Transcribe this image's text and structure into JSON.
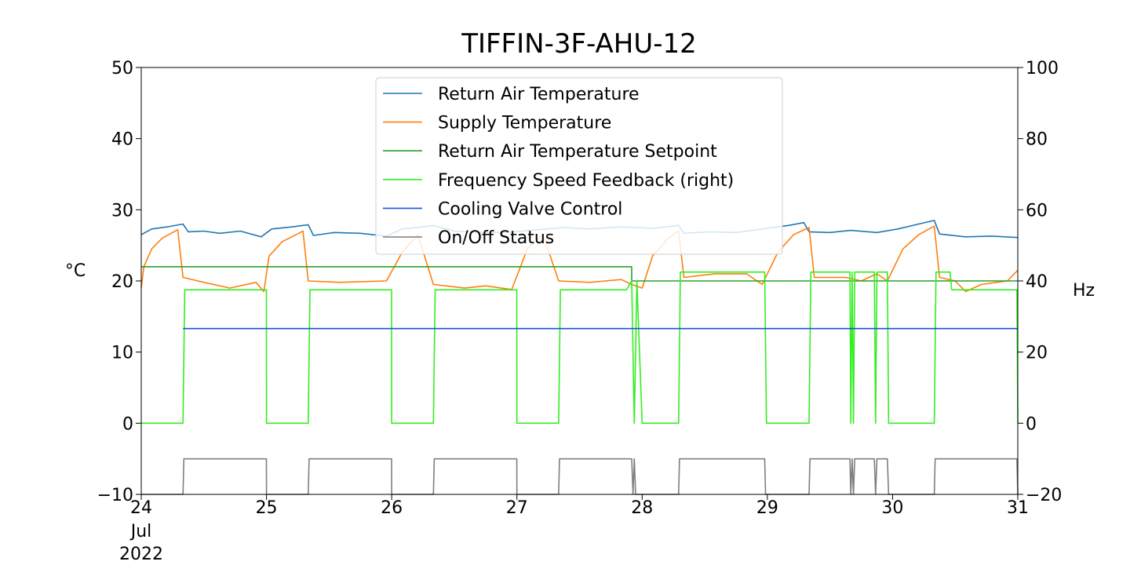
{
  "chart_data": {
    "type": "line",
    "title": "TIFFIN-3F-AHU-12",
    "ylabel_left": "°C",
    "ylabel_right": "Hz",
    "ylim_left": [
      -10,
      50
    ],
    "ylim_right": [
      -20,
      100
    ],
    "yticks_left": [
      "−10",
      "0",
      "10",
      "20",
      "30",
      "40",
      "50"
    ],
    "yticks_right": [
      "−20",
      "0",
      "20",
      "40",
      "60",
      "80",
      "100"
    ],
    "x_range": [
      "2022-07-24",
      "2022-07-31"
    ],
    "xticks": [
      {
        "date": "2022-07-24",
        "label": "24"
      },
      {
        "date": "2022-07-25",
        "label": "25"
      },
      {
        "date": "2022-07-26",
        "label": "26"
      },
      {
        "date": "2022-07-27",
        "label": "27"
      },
      {
        "date": "2022-07-28",
        "label": "28"
      },
      {
        "date": "2022-07-29",
        "label": "29"
      },
      {
        "date": "2022-07-30",
        "label": "30"
      },
      {
        "date": "2022-07-31",
        "label": "31"
      }
    ],
    "xtick_sublabels": [
      "Jul",
      "2022"
    ],
    "legend_position": "upper-center",
    "grid": false,
    "series": [
      {
        "name": "Return Air Temperature",
        "axis": "left",
        "color": "#1f77b4",
        "points": [
          [
            "2022-07-24 00:00",
            26.5
          ],
          [
            "2022-07-24 02:00",
            27.3
          ],
          [
            "2022-07-24 05:00",
            27.6
          ],
          [
            "2022-07-24 08:00",
            28.0
          ],
          [
            "2022-07-24 09:00",
            26.9
          ],
          [
            "2022-07-24 12:00",
            27.0
          ],
          [
            "2022-07-24 15:00",
            26.7
          ],
          [
            "2022-07-24 19:00",
            27.0
          ],
          [
            "2022-07-24 23:00",
            26.2
          ],
          [
            "2022-07-25 01:00",
            27.3
          ],
          [
            "2022-07-25 05:00",
            27.6
          ],
          [
            "2022-07-25 08:00",
            27.9
          ],
          [
            "2022-07-25 09:00",
            26.4
          ],
          [
            "2022-07-25 13:00",
            26.8
          ],
          [
            "2022-07-25 18:00",
            26.7
          ],
          [
            "2022-07-25 23:00",
            26.3
          ],
          [
            "2022-07-26 02:00",
            27.3
          ],
          [
            "2022-07-26 06:00",
            27.6
          ],
          [
            "2022-07-26 08:00",
            27.8
          ],
          [
            "2022-07-26 12:00",
            27.0
          ],
          [
            "2022-07-26 17:00",
            26.8
          ],
          [
            "2022-07-26 22:00",
            26.8
          ],
          [
            "2022-07-27 04:00",
            27.2
          ],
          [
            "2022-07-27 09:00",
            27.5
          ],
          [
            "2022-07-27 14:00",
            27.3
          ],
          [
            "2022-07-27 20:00",
            27.6
          ],
          [
            "2022-07-28 02:00",
            27.4
          ],
          [
            "2022-07-28 07:00",
            27.8
          ],
          [
            "2022-07-28 08:00",
            26.7
          ],
          [
            "2022-07-28 13:00",
            26.9
          ],
          [
            "2022-07-28 18:00",
            26.8
          ],
          [
            "2022-07-28 23:00",
            27.3
          ],
          [
            "2022-07-29 04:00",
            27.8
          ],
          [
            "2022-07-29 07:00",
            28.2
          ],
          [
            "2022-07-29 08:00",
            26.9
          ],
          [
            "2022-07-29 12:00",
            26.8
          ],
          [
            "2022-07-29 16:00",
            27.1
          ],
          [
            "2022-07-29 21:00",
            26.8
          ],
          [
            "2022-07-30 01:00",
            27.3
          ],
          [
            "2022-07-30 05:00",
            28.0
          ],
          [
            "2022-07-30 08:00",
            28.5
          ],
          [
            "2022-07-30 09:00",
            26.6
          ],
          [
            "2022-07-30 14:00",
            26.2
          ],
          [
            "2022-07-30 19:00",
            26.3
          ],
          [
            "2022-07-30 24:00",
            26.1
          ]
        ]
      },
      {
        "name": "Supply Temperature",
        "axis": "left",
        "color": "#ff7f0e",
        "points": [
          [
            "2022-07-24 00:00",
            19.0
          ],
          [
            "2022-07-24 00:30",
            22.0
          ],
          [
            "2022-07-24 02:00",
            24.5
          ],
          [
            "2022-07-24 04:00",
            26.0
          ],
          [
            "2022-07-24 07:00",
            27.2
          ],
          [
            "2022-07-24 08:00",
            20.5
          ],
          [
            "2022-07-24 12:00",
            19.8
          ],
          [
            "2022-07-24 17:00",
            19.0
          ],
          [
            "2022-07-24 22:00",
            19.8
          ],
          [
            "2022-07-24 23:30",
            18.5
          ],
          [
            "2022-07-25 00:30",
            23.5
          ],
          [
            "2022-07-25 03:00",
            25.5
          ],
          [
            "2022-07-25 07:00",
            27.0
          ],
          [
            "2022-07-25 08:00",
            20.0
          ],
          [
            "2022-07-25 14:00",
            19.8
          ],
          [
            "2022-07-25 23:00",
            20.0
          ],
          [
            "2022-07-26 02:00",
            24.0
          ],
          [
            "2022-07-26 05:00",
            26.5
          ],
          [
            "2022-07-26 08:00",
            19.5
          ],
          [
            "2022-07-26 14:00",
            19.0
          ],
          [
            "2022-07-26 18:00",
            19.3
          ],
          [
            "2022-07-26 23:00",
            18.8
          ],
          [
            "2022-07-27 02:00",
            24.5
          ],
          [
            "2022-07-27 05:00",
            26.5
          ],
          [
            "2022-07-27 08:00",
            20.0
          ],
          [
            "2022-07-27 14:00",
            19.8
          ],
          [
            "2022-07-27 20:00",
            20.2
          ],
          [
            "2022-07-27 22:00",
            19.5
          ],
          [
            "2022-07-28 00:00",
            19.0
          ],
          [
            "2022-07-28 02:00",
            23.5
          ],
          [
            "2022-07-28 05:00",
            26.0
          ],
          [
            "2022-07-28 07:00",
            27.0
          ],
          [
            "2022-07-28 08:00",
            20.5
          ],
          [
            "2022-07-28 14:00",
            21.0
          ],
          [
            "2022-07-28 20:00",
            21.0
          ],
          [
            "2022-07-28 23:00",
            19.5
          ],
          [
            "2022-07-29 02:00",
            24.0
          ],
          [
            "2022-07-29 05:00",
            26.5
          ],
          [
            "2022-07-29 08:00",
            27.5
          ],
          [
            "2022-07-29 09:00",
            20.5
          ],
          [
            "2022-07-29 15:00",
            20.5
          ],
          [
            "2022-07-29 18:00",
            20.0
          ],
          [
            "2022-07-29 21:00",
            21.0
          ],
          [
            "2022-07-29 23:00",
            20.0
          ],
          [
            "2022-07-30 02:00",
            24.5
          ],
          [
            "2022-07-30 05:00",
            26.5
          ],
          [
            "2022-07-30 08:00",
            27.7
          ],
          [
            "2022-07-30 09:00",
            20.5
          ],
          [
            "2022-07-30 12:00",
            20.0
          ],
          [
            "2022-07-30 14:00",
            18.5
          ],
          [
            "2022-07-30 17:00",
            19.5
          ],
          [
            "2022-07-30 22:00",
            20.0
          ],
          [
            "2022-07-30 24:00",
            21.5
          ]
        ]
      },
      {
        "name": "Return Air Temperature Setpoint",
        "axis": "left",
        "color": "#2ca02c",
        "points": [
          [
            "2022-07-24 00:00",
            22.0
          ],
          [
            "2022-07-27 22:00",
            22.0
          ],
          [
            "2022-07-27 22:00",
            20.0
          ],
          [
            "2022-07-30 24:00",
            20.0
          ]
        ]
      },
      {
        "name": "Frequency Speed Feedback (right)",
        "axis": "right",
        "color": "#33ee22",
        "points": [
          [
            "2022-07-24 00:00",
            0
          ],
          [
            "2022-07-24 08:00",
            0
          ],
          [
            "2022-07-24 08:20",
            37.5
          ],
          [
            "2022-07-24 23:59",
            37.5
          ],
          [
            "2022-07-25 00:00",
            0
          ],
          [
            "2022-07-25 08:00",
            0
          ],
          [
            "2022-07-25 08:20",
            37.5
          ],
          [
            "2022-07-25 23:59",
            37.5
          ],
          [
            "2022-07-26 00:00",
            0
          ],
          [
            "2022-07-26 08:00",
            0
          ],
          [
            "2022-07-26 08:20",
            37.5
          ],
          [
            "2022-07-26 23:59",
            37.5
          ],
          [
            "2022-07-27 00:00",
            0
          ],
          [
            "2022-07-27 08:00",
            0
          ],
          [
            "2022-07-27 08:20",
            37.5
          ],
          [
            "2022-07-27 21:00",
            37.5
          ],
          [
            "2022-07-27 22:00",
            40.0
          ],
          [
            "2022-07-27 22:30",
            0
          ],
          [
            "2022-07-27 23:00",
            40.0
          ],
          [
            "2022-07-28 00:00",
            0
          ],
          [
            "2022-07-28 07:00",
            0
          ],
          [
            "2022-07-28 07:20",
            42.5
          ],
          [
            "2022-07-28 23:30",
            42.5
          ],
          [
            "2022-07-28 23:50",
            0
          ],
          [
            "2022-07-29 08:00",
            0
          ],
          [
            "2022-07-29 08:20",
            42.5
          ],
          [
            "2022-07-29 15:50",
            42.5
          ],
          [
            "2022-07-29 16:00",
            0
          ],
          [
            "2022-07-29 16:15",
            42.5
          ],
          [
            "2022-07-29 16:30",
            0
          ],
          [
            "2022-07-29 16:45",
            42.5
          ],
          [
            "2022-07-29 20:30",
            42.5
          ],
          [
            "2022-07-29 20:45",
            0
          ],
          [
            "2022-07-29 21:00",
            42.5
          ],
          [
            "2022-07-29 23:00",
            42.5
          ],
          [
            "2022-07-29 23:15",
            0
          ],
          [
            "2022-07-30 08:00",
            0
          ],
          [
            "2022-07-30 08:20",
            42.5
          ],
          [
            "2022-07-30 11:00",
            42.5
          ],
          [
            "2022-07-30 11:20",
            37.5
          ],
          [
            "2022-07-30 23:50",
            37.5
          ],
          [
            "2022-07-30 24:00",
            0
          ]
        ]
      },
      {
        "name": "Cooling Valve Control",
        "axis": "left",
        "color": "#1f4fe0",
        "points": [
          [
            "2022-07-24 08:00",
            13.3
          ],
          [
            "2022-07-24 23:59",
            13.3
          ],
          [
            "2022-07-25 08:00",
            13.3
          ],
          [
            "2022-07-25 23:59",
            13.3
          ],
          [
            "2022-07-26 08:00",
            13.3
          ],
          [
            "2022-07-26 23:59",
            13.3
          ],
          [
            "2022-07-27 08:00",
            13.3
          ],
          [
            "2022-07-27 23:59",
            13.3
          ],
          [
            "2022-07-28 07:00",
            13.3
          ],
          [
            "2022-07-28 23:59",
            13.3
          ],
          [
            "2022-07-29 08:00",
            13.3
          ],
          [
            "2022-07-29 23:59",
            13.3
          ],
          [
            "2022-07-30 08:00",
            13.3
          ],
          [
            "2022-07-30 24:00",
            13.3
          ]
        ]
      },
      {
        "name": "On/Off Status",
        "axis": "left",
        "color": "#7f7f7f",
        "points": [
          [
            "2022-07-24 00:00",
            -10
          ],
          [
            "2022-07-24 08:00",
            -10
          ],
          [
            "2022-07-24 08:10",
            -5
          ],
          [
            "2022-07-24 23:59",
            -5
          ],
          [
            "2022-07-25 00:00",
            -10
          ],
          [
            "2022-07-25 08:00",
            -10
          ],
          [
            "2022-07-25 08:10",
            -5
          ],
          [
            "2022-07-25 23:59",
            -5
          ],
          [
            "2022-07-26 00:00",
            -10
          ],
          [
            "2022-07-26 08:00",
            -10
          ],
          [
            "2022-07-26 08:10",
            -5
          ],
          [
            "2022-07-26 23:59",
            -5
          ],
          [
            "2022-07-27 00:00",
            -10
          ],
          [
            "2022-07-27 08:00",
            -10
          ],
          [
            "2022-07-27 08:10",
            -5
          ],
          [
            "2022-07-27 22:00",
            -5
          ],
          [
            "2022-07-27 22:15",
            -10
          ],
          [
            "2022-07-27 22:30",
            -5
          ],
          [
            "2022-07-27 22:45",
            -10
          ],
          [
            "2022-07-28 07:00",
            -10
          ],
          [
            "2022-07-28 07:10",
            -5
          ],
          [
            "2022-07-28 23:30",
            -5
          ],
          [
            "2022-07-28 23:40",
            -10
          ],
          [
            "2022-07-29 08:00",
            -10
          ],
          [
            "2022-07-29 08:10",
            -5
          ],
          [
            "2022-07-29 15:50",
            -5
          ],
          [
            "2022-07-29 16:00",
            -10
          ],
          [
            "2022-07-29 16:15",
            -5
          ],
          [
            "2022-07-29 16:30",
            -10
          ],
          [
            "2022-07-29 16:45",
            -5
          ],
          [
            "2022-07-29 20:30",
            -5
          ],
          [
            "2022-07-29 20:45",
            -10
          ],
          [
            "2022-07-29 21:00",
            -5
          ],
          [
            "2022-07-29 23:00",
            -5
          ],
          [
            "2022-07-29 23:15",
            -10
          ],
          [
            "2022-07-30 08:00",
            -10
          ],
          [
            "2022-07-30 08:10",
            -5
          ],
          [
            "2022-07-30 23:50",
            -5
          ],
          [
            "2022-07-30 24:00",
            -10
          ]
        ]
      }
    ]
  }
}
